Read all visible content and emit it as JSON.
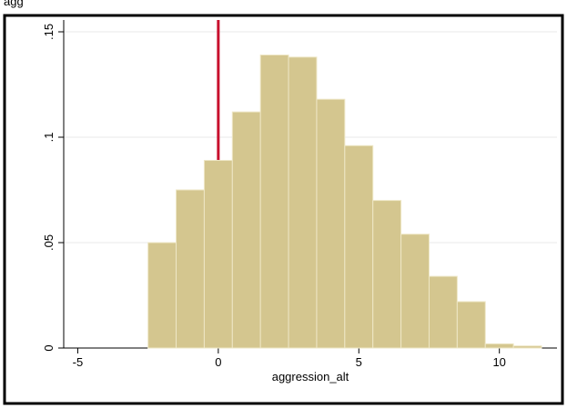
{
  "chart_data": {
    "type": "histogram",
    "title": "agg",
    "x_label": "aggression_alt",
    "bins": [
      -2.5,
      -1.5,
      -0.5,
      0.5,
      1.5,
      2.5,
      3.5,
      4.5,
      5.5,
      6.5,
      7.5,
      8.5,
      9.5,
      10.5,
      11.5
    ],
    "values": [
      0.05,
      0.075,
      0.089,
      0.112,
      0.139,
      0.138,
      0.118,
      0.096,
      0.07,
      0.054,
      0.034,
      0.022,
      0.002,
      0.001
    ],
    "color": "#d4c68f",
    "line_color": "#c8102e",
    "vline": 0,
    "xlim": [
      -5.5,
      12.05
    ],
    "ylim": [
      0,
      0.1556
    ],
    "xticks": [
      -5,
      0,
      5,
      10
    ],
    "yticks": [
      0,
      {
        "value": 0.05,
        "label": ".05"
      },
      {
        "value": 0.1,
        "label": ".1"
      },
      {
        "value": 0.15,
        "label": ".15"
      }
    ],
    "grid": true
  }
}
